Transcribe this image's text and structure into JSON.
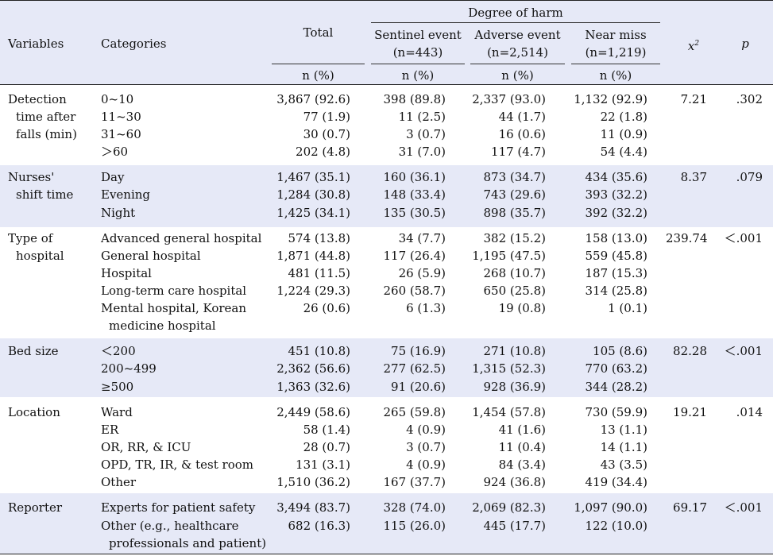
{
  "header": {
    "variables": "Variables",
    "categories": "Categories",
    "total": "Total",
    "degree_of_harm": "Degree of harm",
    "sentinel_line1": "Sentinel event",
    "sentinel_line2": "(n=443)",
    "adverse_line1": "Adverse event",
    "adverse_line2": "(n=2,514)",
    "near_line1": "Near miss",
    "near_line2": "(n=1,219)",
    "chi_base": "x",
    "chi_sup": "2",
    "p": "p",
    "unit": "n (%)"
  },
  "groups": [
    {
      "variable_lines": [
        "Detection",
        "time after",
        "falls (min)"
      ],
      "chi": "7.21",
      "p": ".302",
      "rows": [
        {
          "category": [
            "0~10"
          ],
          "total": "3,867 (92.6)",
          "sentinel": "398 (89.8)",
          "adverse": "2,337 (93.0)",
          "near": "1,132 (92.9)"
        },
        {
          "category": [
            "11~30"
          ],
          "total": "77 (1.9)",
          "sentinel": "11 (2.5)",
          "adverse": "44 (1.7)",
          "near": "22 (1.8)"
        },
        {
          "category": [
            "31~60"
          ],
          "total": "30 (0.7)",
          "sentinel": "3 (0.7)",
          "adverse": "16 (0.6)",
          "near": "11 (0.9)"
        },
        {
          "category": [
            "＞60"
          ],
          "total": "202 (4.8)",
          "sentinel": "31 (7.0)",
          "adverse": "117 (4.7)",
          "near": "54 (4.4)"
        }
      ]
    },
    {
      "variable_lines": [
        "Nurses'",
        "shift time"
      ],
      "chi": "8.37",
      "p": ".079",
      "rows": [
        {
          "category": [
            "Day"
          ],
          "total": "1,467 (35.1)",
          "sentinel": "160 (36.1)",
          "adverse": "873 (34.7)",
          "near": "434 (35.6)"
        },
        {
          "category": [
            "Evening"
          ],
          "total": "1,284 (30.8)",
          "sentinel": "148 (33.4)",
          "adverse": "743 (29.6)",
          "near": "393 (32.2)"
        },
        {
          "category": [
            "Night"
          ],
          "total": "1,425 (34.1)",
          "sentinel": "135 (30.5)",
          "adverse": "898 (35.7)",
          "near": "392 (32.2)"
        }
      ]
    },
    {
      "variable_lines": [
        "Type of",
        "hospital"
      ],
      "chi": "239.74",
      "p": "＜.001",
      "rows": [
        {
          "category": [
            "Advanced general hospital"
          ],
          "total": "574 (13.8)",
          "sentinel": "34 (7.7)",
          "adverse": "382 (15.2)",
          "near": "158 (13.0)"
        },
        {
          "category": [
            "General hospital"
          ],
          "total": "1,871 (44.8)",
          "sentinel": "117 (26.4)",
          "adverse": "1,195 (47.5)",
          "near": "559 (45.8)"
        },
        {
          "category": [
            "Hospital"
          ],
          "total": "481 (11.5)",
          "sentinel": "26 (5.9)",
          "adverse": "268 (10.7)",
          "near": "187 (15.3)"
        },
        {
          "category": [
            "Long-term care hospital"
          ],
          "total": "1,224 (29.3)",
          "sentinel": "260 (58.7)",
          "adverse": "650 (25.8)",
          "near": "314 (25.8)"
        },
        {
          "category": [
            "Mental hospital, Korean",
            "medicine hospital"
          ],
          "total": "26 (0.6)",
          "sentinel": "6 (1.3)",
          "adverse": "19 (0.8)",
          "near": "1 (0.1)"
        }
      ]
    },
    {
      "variable_lines": [
        "Bed size"
      ],
      "chi": "82.28",
      "p": "＜.001",
      "rows": [
        {
          "category": [
            "＜200"
          ],
          "total": "451 (10.8)",
          "sentinel": "75 (16.9)",
          "adverse": "271 (10.8)",
          "near": "105 (8.6)"
        },
        {
          "category": [
            "200~499"
          ],
          "total": "2,362 (56.6)",
          "sentinel": "277 (62.5)",
          "adverse": "1,315 (52.3)",
          "near": "770 (63.2)"
        },
        {
          "category": [
            "≥500"
          ],
          "total": "1,363 (32.6)",
          "sentinel": "91 (20.6)",
          "adverse": "928 (36.9)",
          "near": "344 (28.2)"
        }
      ]
    },
    {
      "variable_lines": [
        "Location"
      ],
      "chi": "19.21",
      "p": ".014",
      "rows": [
        {
          "category": [
            "Ward"
          ],
          "total": "2,449 (58.6)",
          "sentinel": "265 (59.8)",
          "adverse": "1,454 (57.8)",
          "near": "730 (59.9)"
        },
        {
          "category": [
            "ER"
          ],
          "total": "58 (1.4)",
          "sentinel": "4 (0.9)",
          "adverse": "41 (1.6)",
          "near": "13 (1.1)"
        },
        {
          "category": [
            "OR, RR, & ICU"
          ],
          "total": "28 (0.7)",
          "sentinel": "3 (0.7)",
          "adverse": "11 (0.4)",
          "near": "14 (1.1)"
        },
        {
          "category": [
            "OPD, TR, IR, & test room"
          ],
          "total": "131 (3.1)",
          "sentinel": "4 (0.9)",
          "adverse": "84 (3.4)",
          "near": "43 (3.5)"
        },
        {
          "category": [
            "Other"
          ],
          "total": "1,510 (36.2)",
          "sentinel": "167 (37.7)",
          "adverse": "924 (36.8)",
          "near": "419 (34.4)"
        }
      ]
    },
    {
      "variable_lines": [
        "Reporter"
      ],
      "chi": "69.17",
      "p": "＜.001",
      "rows": [
        {
          "category": [
            "Experts for patient safety"
          ],
          "total": "3,494 (83.7)",
          "sentinel": "328 (74.0)",
          "adverse": "2,069 (82.3)",
          "near": "1,097 (90.0)"
        },
        {
          "category": [
            "Other (e.g., healthcare",
            "professionals and patient)"
          ],
          "total": "682 (16.3)",
          "sentinel": "115 (26.0)",
          "adverse": "445 (17.7)",
          "near": "122 (10.0)"
        }
      ]
    }
  ]
}
